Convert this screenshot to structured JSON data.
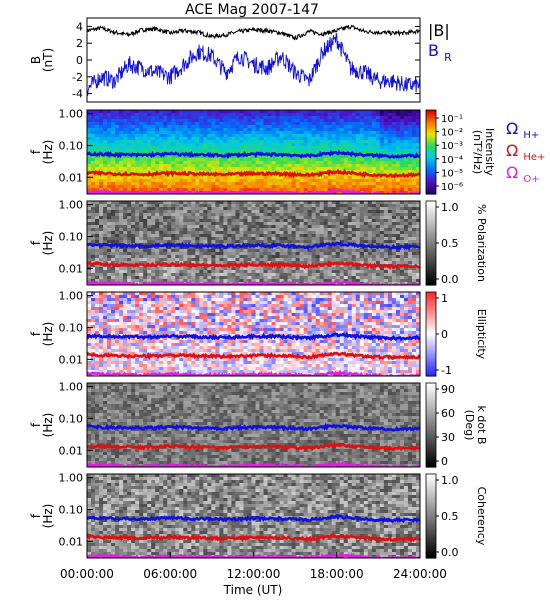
{
  "title": "ACE Mag 2007-147",
  "x_axis": {
    "label": "Time (UT)",
    "ticks": [
      "00:00:00",
      "06:00:00",
      "12:00:00",
      "18:00:00",
      "24:00:00"
    ],
    "range_hours": [
      0,
      24
    ]
  },
  "chart_data": [
    {
      "type": "line",
      "panel": "magnetic-field",
      "ylabel": "B",
      "yunit": "(nT)",
      "ylim": [
        -5,
        5
      ],
      "yticks": [
        "4",
        "2",
        "0",
        "-2",
        "-4"
      ],
      "legend": [
        {
          "name": "|B|",
          "color": "#000000"
        },
        {
          "name": "B",
          "subscript": "R",
          "color": "#1010e0"
        }
      ],
      "series": [
        {
          "name": "|B|",
          "x": [
            0,
            1,
            2,
            3,
            4,
            5,
            6,
            7,
            8,
            9,
            10,
            11,
            12,
            13,
            14,
            15,
            16,
            17,
            18,
            19,
            20,
            21,
            22,
            23,
            24
          ],
          "values": [
            3.5,
            3.8,
            3.3,
            3.0,
            3.6,
            3.7,
            3.2,
            3.5,
            3.3,
            2.8,
            3.0,
            3.4,
            3.6,
            3.5,
            3.2,
            2.6,
            3.4,
            3.1,
            3.5,
            4.0,
            3.4,
            3.3,
            3.2,
            3.2,
            3.5
          ]
        },
        {
          "name": "B_R",
          "x": [
            0,
            1,
            2,
            3,
            4,
            5,
            6,
            7,
            8,
            9,
            10,
            11,
            12,
            13,
            14,
            15,
            16,
            17,
            18,
            19,
            20,
            21,
            22,
            23,
            24
          ],
          "values": [
            -3.5,
            -2.0,
            -2.5,
            -0.5,
            -1.0,
            -1.5,
            -2.0,
            -0.5,
            1.0,
            0.5,
            -1.5,
            0.5,
            -0.5,
            -1.0,
            0.5,
            -1.5,
            -2.5,
            1.0,
            2.5,
            -1.0,
            -1.5,
            -2.5,
            -2.5,
            -3.0,
            -3.0
          ]
        }
      ]
    },
    {
      "type": "heatmap",
      "panel": "intensity",
      "ylabel": "f",
      "yunit": "(Hz)",
      "yscale": "log",
      "yticks": [
        "1.00",
        "0.10",
        "0.01"
      ],
      "colorbar": {
        "label": "Intensity",
        "unit": "(nT²/Hz)",
        "ticks": [
          "10⁻¹",
          "10⁻²",
          "10⁻³",
          "10⁻⁴",
          "10⁻⁵",
          "10⁻⁶"
        ],
        "colormap": "rainbow"
      },
      "legend": [
        {
          "name": "Ω",
          "subscript": "H+",
          "color": "#1010e0"
        },
        {
          "name": "Ω",
          "subscript": "He+",
          "color": "#e01010"
        },
        {
          "name": "Ω",
          "subscript": "O+",
          "color": "#e020e0"
        }
      ]
    },
    {
      "type": "heatmap",
      "panel": "polarization",
      "ylabel": "f",
      "yunit": "(Hz)",
      "yscale": "log",
      "yticks": [
        "1.00",
        "0.10",
        "0.01"
      ],
      "colorbar": {
        "label": "% Polarization",
        "unit": "",
        "ticks": [
          "1.0",
          "0.5",
          "0.0"
        ],
        "colormap": "gray"
      }
    },
    {
      "type": "heatmap",
      "panel": "ellipticity",
      "ylabel": "f",
      "yunit": "(Hz)",
      "yscale": "log",
      "yticks": [
        "1.00",
        "0.10",
        "0.01"
      ],
      "colorbar": {
        "label": "Ellipticity",
        "unit": "",
        "ticks": [
          "1",
          "0",
          "-1"
        ],
        "colormap": "blue-white-red"
      }
    },
    {
      "type": "heatmap",
      "panel": "k-dot-b",
      "ylabel": "f",
      "yunit": "(Hz)",
      "yscale": "log",
      "yticks": [
        "1.00",
        "0.10",
        "0.01"
      ],
      "colorbar": {
        "label": "k dot B",
        "unit": "(Deg)",
        "ticks": [
          "90",
          "60",
          "30",
          "0"
        ],
        "colormap": "gray"
      }
    },
    {
      "type": "heatmap",
      "panel": "coherency",
      "ylabel": "f",
      "yunit": "(Hz)",
      "yscale": "log",
      "yticks": [
        "1.00",
        "0.10",
        "0.01"
      ],
      "colorbar": {
        "label": "Coherency",
        "unit": "",
        "ticks": [
          "1.0",
          "0.5",
          "0.0"
        ],
        "colormap": "gray"
      }
    }
  ],
  "gyrofrequency_curves": {
    "x": [
      0,
      2,
      4,
      6,
      8,
      10,
      12,
      14,
      16,
      18,
      20,
      22,
      24
    ],
    "H+": [
      0.055,
      0.052,
      0.05,
      0.054,
      0.051,
      0.049,
      0.053,
      0.052,
      0.047,
      0.06,
      0.05,
      0.046,
      0.048
    ],
    "He+": [
      0.014,
      0.013,
      0.0125,
      0.0135,
      0.0128,
      0.0122,
      0.0132,
      0.013,
      0.0118,
      0.015,
      0.0125,
      0.0115,
      0.012
    ],
    "O+": [
      0.0035,
      0.0033,
      0.0031,
      0.0034,
      0.0032,
      0.0031,
      0.0033,
      0.0033,
      0.003,
      0.0037,
      0.0031,
      0.0029,
      0.003
    ]
  },
  "colors": {
    "h_plus": "#1010e0",
    "he_plus": "#e01010",
    "o_plus": "#e020e0",
    "b_total": "#000000",
    "b_r": "#1010e0"
  }
}
